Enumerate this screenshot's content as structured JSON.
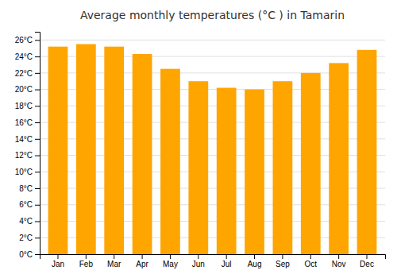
{
  "chart_data": {
    "type": "bar",
    "title": "Average monthly temperatures (°C ) in Tamarin",
    "categories": [
      "Jan",
      "Feb",
      "Mar",
      "Apr",
      "May",
      "Jun",
      "Jul",
      "Aug",
      "Sep",
      "Oct",
      "Nov",
      "Dec"
    ],
    "values": [
      25.2,
      25.5,
      25.2,
      24.3,
      22.5,
      21.0,
      20.2,
      20.0,
      21.0,
      22.0,
      23.2,
      24.8
    ],
    "color": "#FFA500",
    "ylim": [
      0,
      27
    ],
    "yticks": [
      {
        "value": 0,
        "label": "0°C"
      },
      {
        "value": 2,
        "label": "2°C"
      },
      {
        "value": 4,
        "label": "4°C"
      },
      {
        "value": 6,
        "label": "6°C"
      },
      {
        "value": 8,
        "label": "8°C"
      },
      {
        "value": 10,
        "label": "10°C"
      },
      {
        "value": 12,
        "label": "12°C"
      },
      {
        "value": 14,
        "label": "14°C"
      },
      {
        "value": 16,
        "label": "16°C"
      },
      {
        "value": 18,
        "label": "18°C"
      },
      {
        "value": 20,
        "label": "20°C"
      },
      {
        "value": 22,
        "label": "22°C"
      },
      {
        "value": 24,
        "label": "24°C"
      },
      {
        "value": 26,
        "label": "26°C"
      }
    ],
    "grid": true
  }
}
